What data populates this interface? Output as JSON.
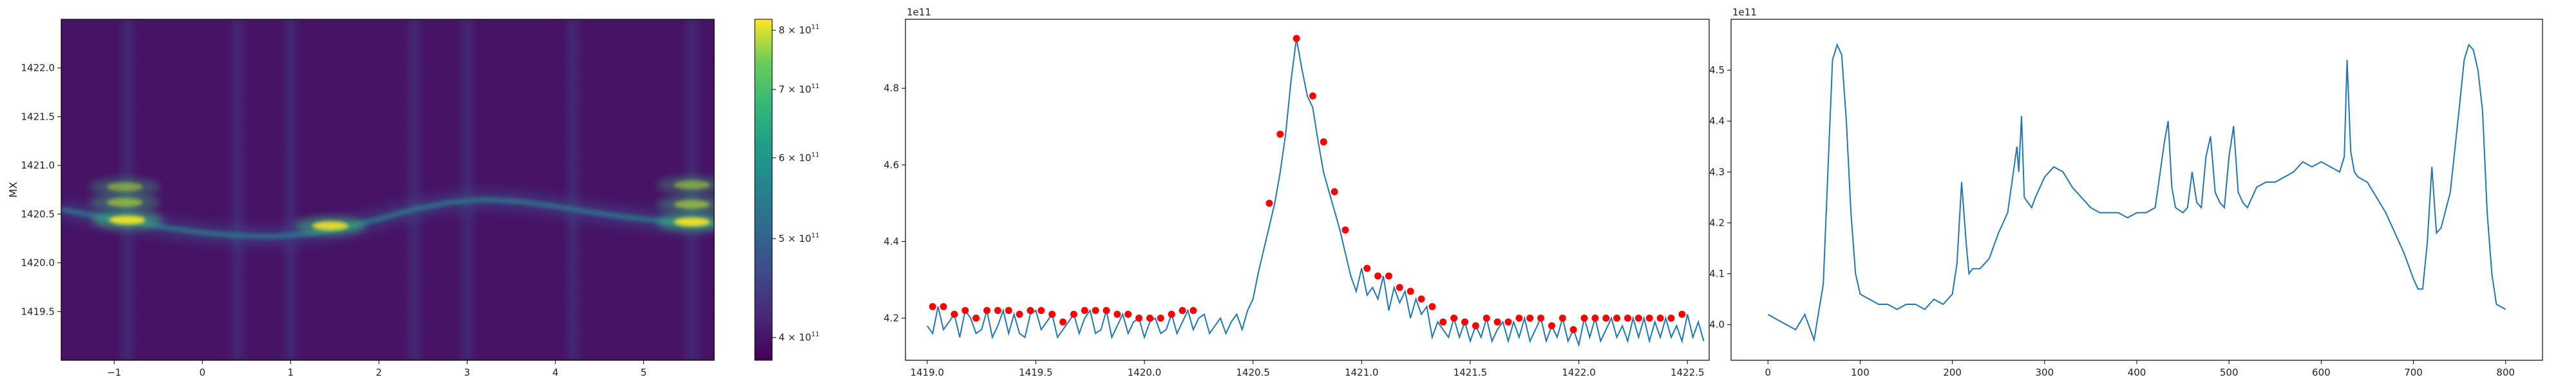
{
  "chart_data": [
    {
      "type": "heatmap",
      "ylabel": "MX",
      "xlim": [
        -1.6,
        5.8
      ],
      "ylim": [
        1419.0,
        1422.5
      ],
      "xticks": [
        "−1",
        "0",
        "1",
        "2",
        "3",
        "4",
        "5"
      ],
      "xtick_values": [
        -1,
        0,
        1,
        2,
        3,
        4,
        5
      ],
      "yticks": [
        "1419.5",
        "1420.0",
        "1420.5",
        "1421.0",
        "1421.5",
        "1422.0"
      ],
      "ytick_values": [
        1419.5,
        1420.0,
        1420.5,
        1421.0,
        1421.5,
        1422.0
      ],
      "colormap": "viridis",
      "colorbar": {
        "scale": "log",
        "range": [
          380000000000.0,
          820000000000.0
        ],
        "ticks": [
          {
            "value": 400000000000.0,
            "mant": "4",
            "exp": "11"
          },
          {
            "value": 500000000000.0,
            "mant": "5",
            "exp": "11"
          },
          {
            "value": 600000000000.0,
            "mant": "6",
            "exp": "11"
          },
          {
            "value": 700000000000.0,
            "mant": "7",
            "exp": "11"
          },
          {
            "value": 800000000000.0,
            "mant": "8",
            "exp": "11"
          }
        ]
      },
      "ridge": {
        "x": [
          -1.6,
          -1.2,
          -0.8,
          -0.4,
          0.0,
          0.4,
          0.8,
          1.2,
          1.6,
          2.0,
          2.4,
          2.8,
          3.2,
          3.6,
          4.0,
          4.4,
          4.8,
          5.2,
          5.6,
          5.8
        ],
        "y": [
          1420.55,
          1420.48,
          1420.42,
          1420.36,
          1420.31,
          1420.28,
          1420.27,
          1420.3,
          1420.36,
          1420.45,
          1420.55,
          1420.62,
          1420.65,
          1420.63,
          1420.58,
          1420.52,
          1420.47,
          1420.43,
          1420.4,
          1420.4
        ]
      },
      "hotspots": [
        {
          "x": -0.85,
          "y": 1420.44,
          "level": 1.0
        },
        {
          "x": -0.88,
          "y": 1420.62,
          "level": 0.7
        },
        {
          "x": -0.88,
          "y": 1420.78,
          "level": 0.6
        },
        {
          "x": 1.45,
          "y": 1420.38,
          "level": 0.95
        },
        {
          "x": 5.55,
          "y": 1420.42,
          "level": 1.0
        },
        {
          "x": 5.55,
          "y": 1420.6,
          "level": 0.7
        },
        {
          "x": 5.55,
          "y": 1420.8,
          "level": 0.6
        }
      ],
      "vertical_bands_x": [
        -0.85,
        0.4,
        1.0,
        2.4,
        3.0,
        4.2,
        5.55
      ]
    },
    {
      "type": "line",
      "offset_label": "1e11",
      "xlim": [
        1418.9,
        1422.6
      ],
      "ylim": [
        4.09,
        4.98
      ],
      "xticks": [
        "1419.0",
        "1419.5",
        "1420.0",
        "1420.5",
        "1421.0",
        "1421.5",
        "1422.0",
        "1422.5"
      ],
      "xtick_values": [
        1419.0,
        1419.5,
        1420.0,
        1420.5,
        1421.0,
        1421.5,
        1422.0,
        1422.5
      ],
      "yticks": [
        "4.2",
        "4.4",
        "4.6",
        "4.8"
      ],
      "ytick_values": [
        4.2,
        4.4,
        4.6,
        4.8
      ],
      "x_start": 1419.0,
      "x_step": 0.025,
      "y": [
        4.18,
        4.16,
        4.23,
        4.17,
        4.19,
        4.21,
        4.15,
        4.22,
        4.2,
        4.16,
        4.17,
        4.22,
        4.15,
        4.18,
        4.22,
        4.16,
        4.21,
        4.16,
        4.15,
        4.21,
        4.22,
        4.17,
        4.19,
        4.21,
        4.15,
        4.17,
        4.19,
        4.21,
        4.16,
        4.2,
        4.22,
        4.16,
        4.17,
        4.22,
        4.15,
        4.18,
        4.21,
        4.16,
        4.19,
        4.2,
        4.15,
        4.19,
        4.2,
        4.16,
        4.17,
        4.21,
        4.16,
        4.19,
        4.22,
        4.17,
        4.2,
        4.21,
        4.16,
        4.18,
        4.2,
        4.16,
        4.19,
        4.21,
        4.17,
        4.22,
        4.25,
        4.32,
        4.38,
        4.44,
        4.5,
        4.58,
        4.68,
        4.82,
        4.93,
        4.85,
        4.78,
        4.75,
        4.66,
        4.58,
        4.53,
        4.48,
        4.43,
        4.37,
        4.31,
        4.27,
        4.33,
        4.26,
        4.28,
        4.25,
        4.31,
        4.22,
        4.28,
        4.24,
        4.27,
        4.2,
        4.25,
        4.21,
        4.23,
        4.15,
        4.19,
        4.17,
        4.15,
        4.2,
        4.15,
        4.19,
        4.14,
        4.18,
        4.15,
        4.2,
        4.14,
        4.17,
        4.19,
        4.14,
        4.19,
        4.15,
        4.2,
        4.14,
        4.17,
        4.2,
        4.14,
        4.18,
        4.15,
        4.2,
        4.14,
        4.17,
        4.13,
        4.2,
        4.15,
        4.2,
        4.14,
        4.17,
        4.2,
        4.15,
        4.18,
        4.14,
        4.2,
        4.15,
        4.2,
        4.14,
        4.19,
        4.15,
        4.2,
        4.15,
        4.18,
        4.14,
        4.21,
        4.15,
        4.19,
        4.14
      ],
      "peaks_x": [
        1419.025,
        1419.075,
        1419.125,
        1419.175,
        1419.225,
        1419.275,
        1419.325,
        1419.375,
        1419.425,
        1419.475,
        1419.525,
        1419.575,
        1419.625,
        1419.675,
        1419.725,
        1419.775,
        1419.825,
        1419.875,
        1419.925,
        1419.975,
        1420.025,
        1420.075,
        1420.125,
        1420.175,
        1420.225,
        1420.575,
        1420.625,
        1420.7,
        1420.775,
        1420.825,
        1420.875,
        1420.925,
        1421.025,
        1421.075,
        1421.125,
        1421.175,
        1421.225,
        1421.275,
        1421.325,
        1421.375,
        1421.425,
        1421.475,
        1421.525,
        1421.575,
        1421.625,
        1421.675,
        1421.725,
        1421.775,
        1421.825,
        1421.875,
        1421.925,
        1421.975,
        1422.025,
        1422.075,
        1422.125,
        1422.175,
        1422.225,
        1422.275,
        1422.325,
        1422.375,
        1422.425,
        1422.475
      ]
    },
    {
      "type": "line",
      "offset_label": "1e11",
      "xlim": [
        -40,
        840
      ],
      "ylim": [
        3.93,
        4.6
      ],
      "xticks": [
        "0",
        "100",
        "200",
        "300",
        "400",
        "500",
        "600",
        "700",
        "800"
      ],
      "xtick_values": [
        0,
        100,
        200,
        300,
        400,
        500,
        600,
        700,
        800
      ],
      "yticks": [
        "4.0",
        "4.1",
        "4.2",
        "4.3",
        "4.4",
        "4.5"
      ],
      "ytick_values": [
        4.0,
        4.1,
        4.2,
        4.3,
        4.4,
        4.5
      ],
      "x": [
        0,
        10,
        20,
        30,
        40,
        50,
        60,
        65,
        70,
        75,
        80,
        85,
        90,
        95,
        100,
        110,
        120,
        130,
        140,
        150,
        160,
        170,
        180,
        190,
        200,
        205,
        210,
        215,
        218,
        222,
        226,
        230,
        240,
        250,
        260,
        270,
        272,
        275,
        278,
        282,
        286,
        290,
        300,
        310,
        320,
        330,
        340,
        350,
        360,
        370,
        380,
        390,
        400,
        410,
        420,
        430,
        434,
        438,
        442,
        450,
        455,
        460,
        465,
        470,
        475,
        480,
        485,
        490,
        495,
        500,
        505,
        510,
        515,
        520,
        530,
        540,
        550,
        560,
        570,
        580,
        590,
        600,
        610,
        620,
        625,
        628,
        632,
        636,
        640,
        650,
        660,
        670,
        680,
        690,
        700,
        705,
        710,
        715,
        720,
        725,
        730,
        740,
        750,
        755,
        760,
        765,
        770,
        775,
        780,
        785,
        790,
        800
      ],
      "y": [
        4.02,
        4.01,
        4.0,
        3.99,
        4.02,
        3.97,
        4.08,
        4.3,
        4.52,
        4.55,
        4.53,
        4.4,
        4.22,
        4.1,
        4.06,
        4.05,
        4.04,
        4.04,
        4.03,
        4.04,
        4.04,
        4.03,
        4.05,
        4.04,
        4.06,
        4.12,
        4.28,
        4.16,
        4.1,
        4.11,
        4.11,
        4.11,
        4.13,
        4.18,
        4.22,
        4.35,
        4.3,
        4.41,
        4.25,
        4.24,
        4.23,
        4.25,
        4.29,
        4.31,
        4.3,
        4.27,
        4.25,
        4.23,
        4.22,
        4.22,
        4.22,
        4.21,
        4.22,
        4.22,
        4.23,
        4.36,
        4.4,
        4.27,
        4.23,
        4.22,
        4.23,
        4.3,
        4.24,
        4.23,
        4.33,
        4.37,
        4.26,
        4.24,
        4.23,
        4.33,
        4.39,
        4.26,
        4.24,
        4.23,
        4.27,
        4.28,
        4.28,
        4.29,
        4.3,
        4.32,
        4.31,
        4.32,
        4.31,
        4.3,
        4.33,
        4.52,
        4.34,
        4.3,
        4.29,
        4.28,
        4.25,
        4.22,
        4.18,
        4.14,
        4.09,
        4.07,
        4.07,
        4.16,
        4.31,
        4.18,
        4.19,
        4.26,
        4.43,
        4.52,
        4.55,
        4.54,
        4.5,
        4.42,
        4.22,
        4.1,
        4.04,
        4.03
      ]
    }
  ]
}
